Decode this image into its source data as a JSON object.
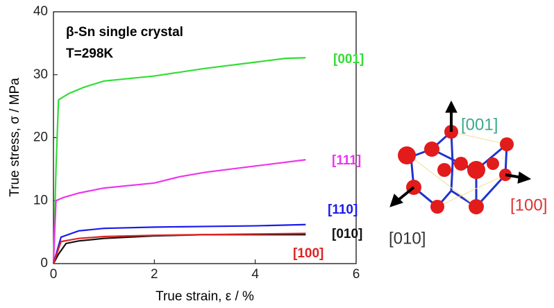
{
  "chart_data": {
    "type": "line",
    "annotations": [
      "β-Sn single crystal",
      "T=298K"
    ],
    "xlabel": "True strain, ε / %",
    "ylabel": "True stress, σ / MPa",
    "xlim": [
      0,
      6
    ],
    "xticks": [
      0,
      2,
      4,
      6
    ],
    "ylim": [
      0,
      40
    ],
    "yticks": [
      0,
      10,
      20,
      30,
      40
    ],
    "series": [
      {
        "name": "[001]",
        "color": "#33dd33",
        "x": [
          0,
          0.05,
          0.1,
          0.3,
          0.6,
          1,
          2,
          3,
          4,
          4.6,
          5
        ],
        "values": [
          0,
          15,
          26,
          27,
          28,
          29,
          29.8,
          31,
          32,
          32.6,
          32.7
        ]
      },
      {
        "name": "[111]",
        "color": "#ee33ee",
        "x": [
          0,
          0.05,
          0.2,
          0.5,
          1,
          2,
          2.5,
          3,
          4,
          5
        ],
        "values": [
          0,
          10,
          10.5,
          11.2,
          12,
          12.8,
          13.8,
          14.5,
          15.5,
          16.5
        ]
      },
      {
        "name": "[110]",
        "color": "#1a1aee",
        "x": [
          0,
          0.15,
          0.5,
          1,
          2,
          3,
          4,
          5
        ],
        "values": [
          0,
          4.2,
          5.2,
          5.6,
          5.8,
          5.9,
          6,
          6.2
        ]
      },
      {
        "name": "[010]",
        "color": "#111111",
        "x": [
          0,
          0.1,
          0.25,
          0.5,
          1,
          2,
          3,
          4,
          5
        ],
        "values": [
          0,
          1.5,
          3.2,
          3.6,
          4,
          4.4,
          4.6,
          4.6,
          4.6
        ]
      },
      {
        "name": "[100]",
        "color": "#dd2222",
        "x": [
          0,
          0.15,
          0.5,
          1,
          2,
          3,
          4,
          5
        ],
        "values": [
          0,
          3.5,
          4,
          4.3,
          4.5,
          4.6,
          4.7,
          4.8
        ]
      }
    ]
  },
  "diagram": {
    "labels": [
      "[001]",
      "[100]",
      "[010]"
    ]
  }
}
